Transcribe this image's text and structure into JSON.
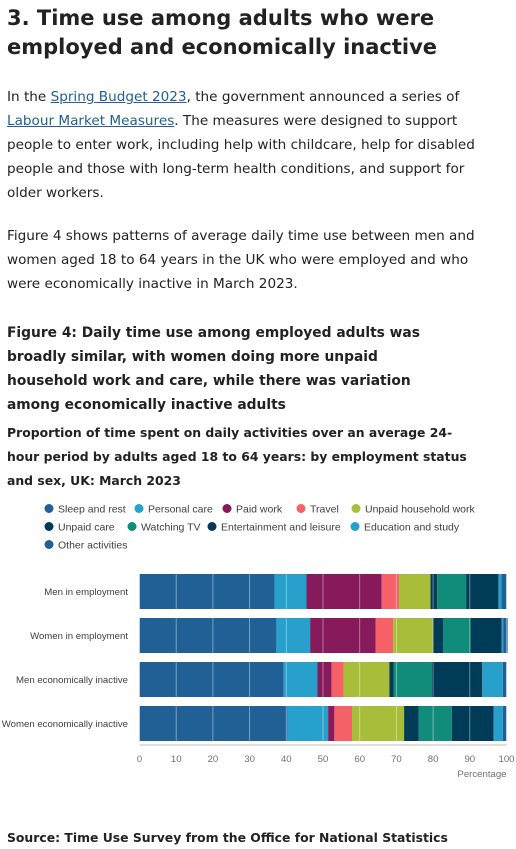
{
  "section": {
    "title_line1": "3.  Time use among adults who were",
    "title_line2": "employed and economically inactive"
  },
  "para1": {
    "lead": "In the ",
    "link1": "Spring Budget 2023",
    "mid": ", the government announced a series of ",
    "link2": "Labour Market Measures",
    "tail": ". The measures were designed to support people to enter work, including help with childcare, help for disabled people and those with long-term health conditions, and support for older workers."
  },
  "para2": "Figure 4 shows patterns of average daily time use between men and women aged 18 to 64 years in the UK who were employed and who were economically inactive in March 2023.",
  "figure": {
    "title": "Figure 4: Daily time use among employed adults was broadly similar, with women doing more unpaid household work and care, while there was variation among economically inactive adults",
    "subtitle": "Proportion of time spent on daily activities over an average 24-hour period by adults aged 18 to 64 years: by employment status and sex, UK: March 2023",
    "source": "Source: Time Use Survey from the Office for National Statistics"
  },
  "chart_data": {
    "type": "bar",
    "orientation": "horizontal",
    "stacked": true,
    "categories": [
      "Men in employment",
      "Women in employment",
      "Men economically inactive",
      "Women economically inactive"
    ],
    "series": [
      {
        "name": "Sleep and rest",
        "color": "#206095",
        "values": [
          36.8,
          37.3,
          39.3,
          40.3
        ]
      },
      {
        "name": "Personal care",
        "color": "#27a0cc",
        "values": [
          8.7,
          9.2,
          9.2,
          11.1
        ]
      },
      {
        "name": "Paid work",
        "color": "#871a5b",
        "values": [
          20.5,
          17.8,
          3.8,
          1.7
        ]
      },
      {
        "name": "Travel",
        "color": "#f66068",
        "values": [
          4.7,
          4.8,
          3.3,
          4.8
        ]
      },
      {
        "name": "Unpaid household work",
        "color": "#a8bd3a",
        "values": [
          8.6,
          10.9,
          12.5,
          14.2
        ]
      },
      {
        "name": "Unpaid care",
        "color": "#003c57",
        "values": [
          1.8,
          2.7,
          1.2,
          4.0
        ]
      },
      {
        "name": "Watching TV",
        "color": "#118c7b",
        "values": [
          7.9,
          7.5,
          10.4,
          9.0
        ]
      },
      {
        "name": "Entertainment and leisure",
        "color": "#003c57",
        "values": [
          8.8,
          8.5,
          13.7,
          11.4
        ]
      },
      {
        "name": "Education and study",
        "color": "#27a0cc",
        "values": [
          0.8,
          0.4,
          5.6,
          2.5
        ]
      },
      {
        "name": "Other activities",
        "color": "#206095",
        "values": [
          1.4,
          1.2,
          1.0,
          1.0
        ]
      }
    ],
    "xlim": [
      0,
      100
    ],
    "xticks": [
      "0",
      "10",
      "20",
      "30",
      "40",
      "50",
      "60",
      "70",
      "80",
      "90",
      "100"
    ],
    "xlabel": "Percentage",
    "legend_position": "top-left"
  }
}
